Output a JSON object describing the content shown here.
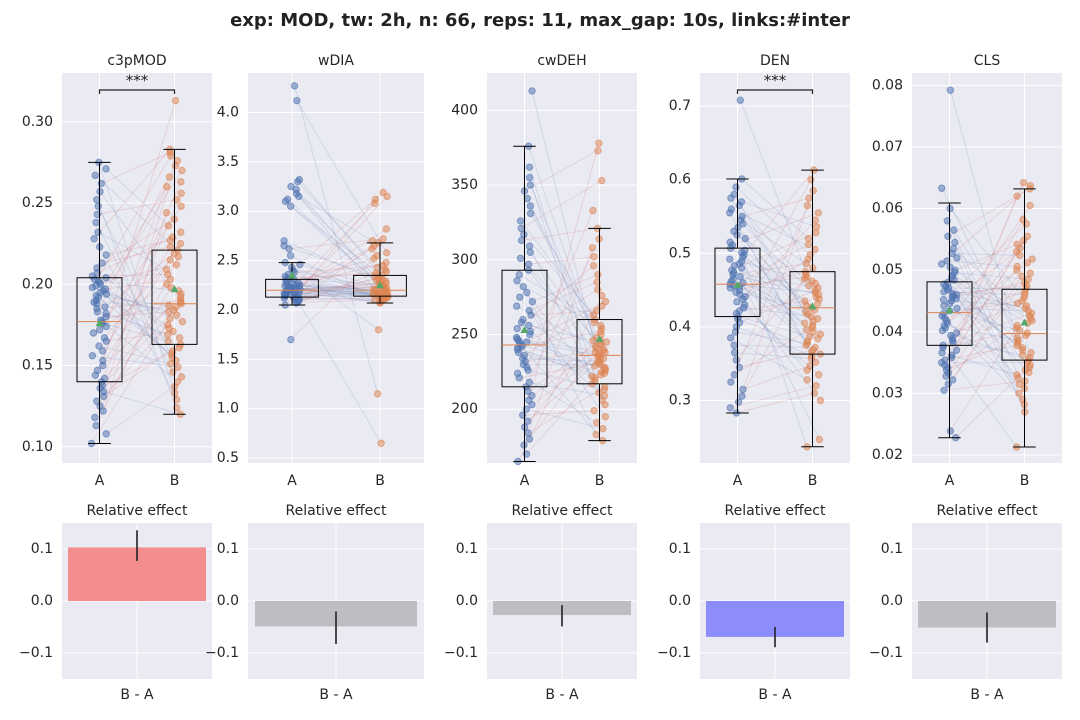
{
  "suptitle": "exp: MOD, tw: 2h, n: 66, reps: 11, max_gap: 10s, links:#inter",
  "colors": {
    "axes_bg": "#EAEAF2",
    "grid": "#FFFFFF",
    "group_A": "#4C72B0",
    "group_B": "#DD8452",
    "median": "#DD8452",
    "mean_marker": "#55A868",
    "link_up": "#C44E52",
    "link_down": "#4C72B0",
    "effect_positive": "#F28E8E",
    "effect_negative": "#8C8CFA",
    "effect_neutral": "#BDBDC2"
  },
  "chart_data": [
    {
      "type": "box",
      "title": "c3pMOD",
      "categories": [
        "A",
        "B"
      ],
      "ylim": [
        0.09,
        0.33
      ],
      "yticks": [
        "0.10",
        "0.15",
        "0.20",
        "0.25",
        "0.30"
      ],
      "ytick_values": [
        0.1,
        0.15,
        0.2,
        0.25,
        0.3
      ],
      "boxes": [
        {
          "group": "A",
          "whisker_low": 0.102,
          "q1": 0.14,
          "median": 0.177,
          "q3": 0.204,
          "whisker_high": 0.275,
          "mean": 0.176
        },
        {
          "group": "B",
          "whisker_low": 0.12,
          "q1": 0.163,
          "median": 0.188,
          "q3": 0.221,
          "whisker_high": 0.283,
          "mean": 0.197
        }
      ],
      "significance": "***",
      "points_A": [
        0.102,
        0.108,
        0.113,
        0.118,
        0.122,
        0.125,
        0.128,
        0.131,
        0.134,
        0.136,
        0.138,
        0.14,
        0.142,
        0.144,
        0.147,
        0.15,
        0.153,
        0.156,
        0.159,
        0.162,
        0.165,
        0.167,
        0.17,
        0.172,
        0.174,
        0.176,
        0.177,
        0.178,
        0.18,
        0.182,
        0.183,
        0.185,
        0.186,
        0.188,
        0.189,
        0.19,
        0.192,
        0.193,
        0.194,
        0.195,
        0.196,
        0.197,
        0.198,
        0.199,
        0.2,
        0.201,
        0.202,
        0.203,
        0.204,
        0.205,
        0.207,
        0.21,
        0.213,
        0.218,
        0.223,
        0.228,
        0.232,
        0.238,
        0.243,
        0.248,
        0.252,
        0.257,
        0.262,
        0.267,
        0.271,
        0.275
      ],
      "points_B": [
        0.12,
        0.124,
        0.129,
        0.133,
        0.137,
        0.14,
        0.143,
        0.146,
        0.149,
        0.151,
        0.153,
        0.155,
        0.157,
        0.159,
        0.161,
        0.163,
        0.165,
        0.167,
        0.169,
        0.171,
        0.173,
        0.175,
        0.177,
        0.179,
        0.181,
        0.183,
        0.184,
        0.186,
        0.187,
        0.188,
        0.189,
        0.19,
        0.192,
        0.194,
        0.196,
        0.198,
        0.2,
        0.203,
        0.206,
        0.209,
        0.212,
        0.215,
        0.217,
        0.219,
        0.221,
        0.223,
        0.225,
        0.227,
        0.229,
        0.232,
        0.236,
        0.24,
        0.244,
        0.248,
        0.252,
        0.256,
        0.26,
        0.263,
        0.266,
        0.27,
        0.273,
        0.276,
        0.279,
        0.281,
        0.283,
        0.313
      ]
    },
    {
      "type": "box",
      "title": "wDIA",
      "categories": [
        "A",
        "B"
      ],
      "ylim": [
        0.45,
        4.4
      ],
      "yticks": [
        "0.5",
        "1.0",
        "1.5",
        "2.0",
        "2.5",
        "3.0",
        "3.5",
        "4.0"
      ],
      "ytick_values": [
        0.5,
        1.0,
        1.5,
        2.0,
        2.5,
        3.0,
        3.5,
        4.0
      ],
      "boxes": [
        {
          "group": "A",
          "whisker_low": 2.05,
          "q1": 2.13,
          "median": 2.2,
          "q3": 2.31,
          "whisker_high": 2.48,
          "mean": 2.35
        },
        {
          "group": "B",
          "whisker_low": 2.07,
          "q1": 2.14,
          "median": 2.2,
          "q3": 2.35,
          "whisker_high": 2.68,
          "mean": 2.25
        }
      ],
      "significance": "",
      "points_A": [
        1.7,
        2.05,
        2.07,
        2.08,
        2.09,
        2.1,
        2.11,
        2.11,
        2.12,
        2.12,
        2.13,
        2.13,
        2.14,
        2.14,
        2.15,
        2.15,
        2.16,
        2.16,
        2.17,
        2.17,
        2.18,
        2.18,
        2.19,
        2.19,
        2.2,
        2.2,
        2.2,
        2.21,
        2.21,
        2.22,
        2.22,
        2.23,
        2.23,
        2.24,
        2.24,
        2.25,
        2.25,
        2.26,
        2.27,
        2.28,
        2.29,
        2.3,
        2.31,
        2.32,
        2.34,
        2.36,
        2.38,
        2.4,
        2.43,
        2.46,
        2.48,
        2.55,
        2.62,
        2.65,
        2.7,
        3.05,
        3.1,
        3.12,
        3.15,
        3.18,
        3.22,
        3.25,
        3.3,
        3.32,
        4.12,
        4.27
      ],
      "points_B": [
        0.65,
        1.15,
        1.8,
        2.07,
        2.08,
        2.09,
        2.1,
        2.11,
        2.11,
        2.12,
        2.12,
        2.13,
        2.13,
        2.14,
        2.14,
        2.15,
        2.15,
        2.16,
        2.16,
        2.17,
        2.17,
        2.18,
        2.18,
        2.19,
        2.19,
        2.2,
        2.2,
        2.21,
        2.21,
        2.22,
        2.22,
        2.23,
        2.24,
        2.25,
        2.26,
        2.27,
        2.28,
        2.29,
        2.3,
        2.31,
        2.32,
        2.33,
        2.34,
        2.35,
        2.37,
        2.39,
        2.41,
        2.43,
        2.45,
        2.48,
        2.52,
        2.55,
        2.58,
        2.62,
        2.65,
        2.68,
        2.7,
        2.72,
        2.82,
        3.08,
        3.12,
        3.15,
        3.19,
        2.1,
        2.16,
        2.24
      ]
    },
    {
      "type": "box",
      "title": "cwDEH",
      "categories": [
        "A",
        "B"
      ],
      "ylim": [
        164,
        425
      ],
      "yticks": [
        "200",
        "250",
        "300",
        "350",
        "400"
      ],
      "ytick_values": [
        200,
        250,
        300,
        350,
        400
      ],
      "boxes": [
        {
          "group": "A",
          "whisker_low": 165,
          "q1": 215,
          "median": 243,
          "q3": 293,
          "whisker_high": 376,
          "mean": 253
        },
        {
          "group": "B",
          "whisker_low": 179,
          "q1": 217,
          "median": 236,
          "q3": 260,
          "whisker_high": 321,
          "mean": 247
        }
      ],
      "significance": "",
      "points_A": [
        165,
        170,
        176,
        180,
        184,
        188,
        192,
        196,
        200,
        203,
        206,
        209,
        212,
        215,
        218,
        221,
        224,
        226,
        228,
        230,
        232,
        234,
        236,
        238,
        240,
        241,
        242,
        243,
        244,
        245,
        246,
        247,
        248,
        250,
        252,
        254,
        256,
        258,
        260,
        263,
        266,
        269,
        272,
        275,
        278,
        282,
        286,
        290,
        293,
        297,
        301,
        305,
        309,
        313,
        317,
        321,
        326,
        331,
        336,
        341,
        346,
        350,
        355,
        362,
        376,
        413
      ],
      "points_B": [
        179,
        183,
        187,
        191,
        195,
        199,
        203,
        206,
        209,
        211,
        213,
        215,
        217,
        219,
        221,
        222,
        223,
        224,
        225,
        226,
        227,
        228,
        229,
        230,
        231,
        232,
        233,
        234,
        235,
        236,
        237,
        238,
        239,
        240,
        241,
        242,
        243,
        244,
        245,
        246,
        248,
        250,
        252,
        254,
        256,
        258,
        260,
        263,
        266,
        269,
        272,
        276,
        280,
        285,
        290,
        296,
        302,
        308,
        314,
        321,
        333,
        353,
        373,
        378,
        246,
        238
      ]
    },
    {
      "type": "box",
      "title": "DEN",
      "categories": [
        "A",
        "B"
      ],
      "ylim": [
        0.215,
        0.745
      ],
      "yticks": [
        "0.3",
        "0.4",
        "0.5",
        "0.6",
        "0.7"
      ],
      "ytick_values": [
        0.3,
        0.4,
        0.5,
        0.6,
        0.7
      ],
      "boxes": [
        {
          "group": "A",
          "whisker_low": 0.283,
          "q1": 0.414,
          "median": 0.458,
          "q3": 0.507,
          "whisker_high": 0.601,
          "mean": 0.457
        },
        {
          "group": "B",
          "whisker_low": 0.237,
          "q1": 0.363,
          "median": 0.426,
          "q3": 0.475,
          "whisker_high": 0.613,
          "mean": 0.428
        }
      ],
      "significance": "***",
      "points_A": [
        0.283,
        0.29,
        0.298,
        0.306,
        0.315,
        0.325,
        0.335,
        0.345,
        0.355,
        0.365,
        0.375,
        0.385,
        0.393,
        0.4,
        0.406,
        0.411,
        0.414,
        0.418,
        0.422,
        0.426,
        0.43,
        0.434,
        0.438,
        0.441,
        0.444,
        0.447,
        0.45,
        0.453,
        0.456,
        0.458,
        0.46,
        0.462,
        0.465,
        0.468,
        0.471,
        0.474,
        0.477,
        0.48,
        0.483,
        0.486,
        0.489,
        0.492,
        0.495,
        0.498,
        0.501,
        0.504,
        0.507,
        0.511,
        0.515,
        0.52,
        0.525,
        0.53,
        0.535,
        0.54,
        0.545,
        0.55,
        0.555,
        0.56,
        0.565,
        0.57,
        0.575,
        0.58,
        0.59,
        0.601,
        0.708,
        0.455
      ],
      "points_B": [
        0.237,
        0.247,
        0.3,
        0.31,
        0.32,
        0.328,
        0.335,
        0.341,
        0.347,
        0.352,
        0.357,
        0.361,
        0.363,
        0.366,
        0.369,
        0.372,
        0.375,
        0.378,
        0.381,
        0.384,
        0.387,
        0.39,
        0.393,
        0.396,
        0.399,
        0.402,
        0.405,
        0.408,
        0.411,
        0.414,
        0.417,
        0.42,
        0.423,
        0.426,
        0.429,
        0.432,
        0.435,
        0.438,
        0.441,
        0.444,
        0.447,
        0.45,
        0.453,
        0.456,
        0.459,
        0.462,
        0.465,
        0.468,
        0.471,
        0.475,
        0.48,
        0.486,
        0.492,
        0.498,
        0.505,
        0.512,
        0.52,
        0.528,
        0.536,
        0.545,
        0.555,
        0.565,
        0.575,
        0.585,
        0.6,
        0.613
      ]
    },
    {
      "type": "box",
      "title": "CLS",
      "categories": [
        "A",
        "B"
      ],
      "ylim": [
        0.0187,
        0.082
      ],
      "yticks": [
        "0.02",
        "0.03",
        "0.04",
        "0.05",
        "0.06",
        "0.07",
        "0.08"
      ],
      "ytick_values": [
        0.02,
        0.03,
        0.04,
        0.05,
        0.06,
        0.07,
        0.08
      ],
      "boxes": [
        {
          "group": "A",
          "whisker_low": 0.0228,
          "q1": 0.0378,
          "median": 0.0431,
          "q3": 0.0481,
          "whisker_high": 0.0609,
          "mean": 0.0435
        },
        {
          "group": "B",
          "whisker_low": 0.0213,
          "q1": 0.0354,
          "median": 0.0397,
          "q3": 0.0469,
          "whisker_high": 0.0632,
          "mean": 0.0415
        }
      ],
      "significance": "",
      "points_A": [
        0.0228,
        0.0239,
        0.0305,
        0.0315,
        0.0322,
        0.0328,
        0.0333,
        0.0338,
        0.0342,
        0.0346,
        0.035,
        0.0354,
        0.0358,
        0.0362,
        0.0366,
        0.037,
        0.0374,
        0.0378,
        0.0382,
        0.0386,
        0.039,
        0.0394,
        0.0398,
        0.0402,
        0.0406,
        0.041,
        0.0414,
        0.0418,
        0.0422,
        0.0426,
        0.043,
        0.0434,
        0.0438,
        0.0442,
        0.0446,
        0.045,
        0.0452,
        0.0454,
        0.0456,
        0.0458,
        0.046,
        0.0462,
        0.0465,
        0.0468,
        0.0471,
        0.0474,
        0.0477,
        0.048,
        0.0484,
        0.0488,
        0.0492,
        0.0496,
        0.05,
        0.0505,
        0.051,
        0.0515,
        0.052,
        0.0527,
        0.0535,
        0.0545,
        0.0555,
        0.0565,
        0.058,
        0.06,
        0.0633,
        0.0792
      ],
      "points_B": [
        0.0213,
        0.027,
        0.0282,
        0.029,
        0.03,
        0.0308,
        0.0315,
        0.032,
        0.0325,
        0.033,
        0.0334,
        0.0338,
        0.0342,
        0.0346,
        0.035,
        0.0354,
        0.0358,
        0.0362,
        0.0366,
        0.037,
        0.0374,
        0.0378,
        0.0382,
        0.0386,
        0.039,
        0.0394,
        0.0398,
        0.0402,
        0.0406,
        0.041,
        0.0414,
        0.0418,
        0.0422,
        0.0426,
        0.043,
        0.0434,
        0.0438,
        0.0442,
        0.0446,
        0.045,
        0.0455,
        0.046,
        0.0465,
        0.047,
        0.0475,
        0.048,
        0.0485,
        0.049,
        0.0495,
        0.05,
        0.0506,
        0.0512,
        0.0518,
        0.0524,
        0.053,
        0.0536,
        0.0542,
        0.0548,
        0.0555,
        0.0575,
        0.0582,
        0.0605,
        0.062,
        0.0632,
        0.0637,
        0.0642
      ]
    },
    {
      "type": "bar",
      "title": "Relative effect",
      "categories": [
        "B - A"
      ],
      "ylim": [
        -0.15,
        0.15
      ],
      "yticks": [
        "−0.1",
        "0.0",
        "0.1"
      ],
      "ytick_values": [
        -0.1,
        0.0,
        0.1
      ],
      "value": 0.103,
      "error_low": 0.077,
      "error_high": 0.136,
      "color_key": "effect_positive"
    },
    {
      "type": "bar",
      "title": "Relative effect",
      "categories": [
        "B - A"
      ],
      "ylim": [
        -0.15,
        0.15
      ],
      "yticks": [
        "−0.1",
        "0.0",
        "0.1"
      ],
      "ytick_values": [
        -0.1,
        0.0,
        0.1
      ],
      "value": -0.049,
      "error_low": -0.083,
      "error_high": -0.02,
      "color_key": "effect_neutral"
    },
    {
      "type": "bar",
      "title": "Relative effect",
      "categories": [
        "B - A"
      ],
      "ylim": [
        -0.15,
        0.15
      ],
      "yticks": [
        "−0.1",
        "0.0",
        "0.1"
      ],
      "ytick_values": [
        -0.1,
        0.0,
        0.1
      ],
      "value": -0.027,
      "error_low": -0.049,
      "error_high": -0.008,
      "color_key": "effect_neutral"
    },
    {
      "type": "bar",
      "title": "Relative effect",
      "categories": [
        "B - A"
      ],
      "ylim": [
        -0.15,
        0.15
      ],
      "yticks": [
        "−0.1",
        "0.0",
        "0.1"
      ],
      "ytick_values": [
        -0.1,
        0.0,
        0.1
      ],
      "value": -0.069,
      "error_low": -0.089,
      "error_high": -0.05,
      "color_key": "effect_negative"
    },
    {
      "type": "bar",
      "title": "Relative effect",
      "categories": [
        "B - A"
      ],
      "ylim": [
        -0.15,
        0.15
      ],
      "yticks": [
        "−0.1",
        "0.0",
        "0.1"
      ],
      "ytick_values": [
        -0.1,
        0.0,
        0.1
      ],
      "value": -0.051,
      "error_low": -0.08,
      "error_high": -0.022,
      "color_key": "effect_neutral"
    }
  ]
}
